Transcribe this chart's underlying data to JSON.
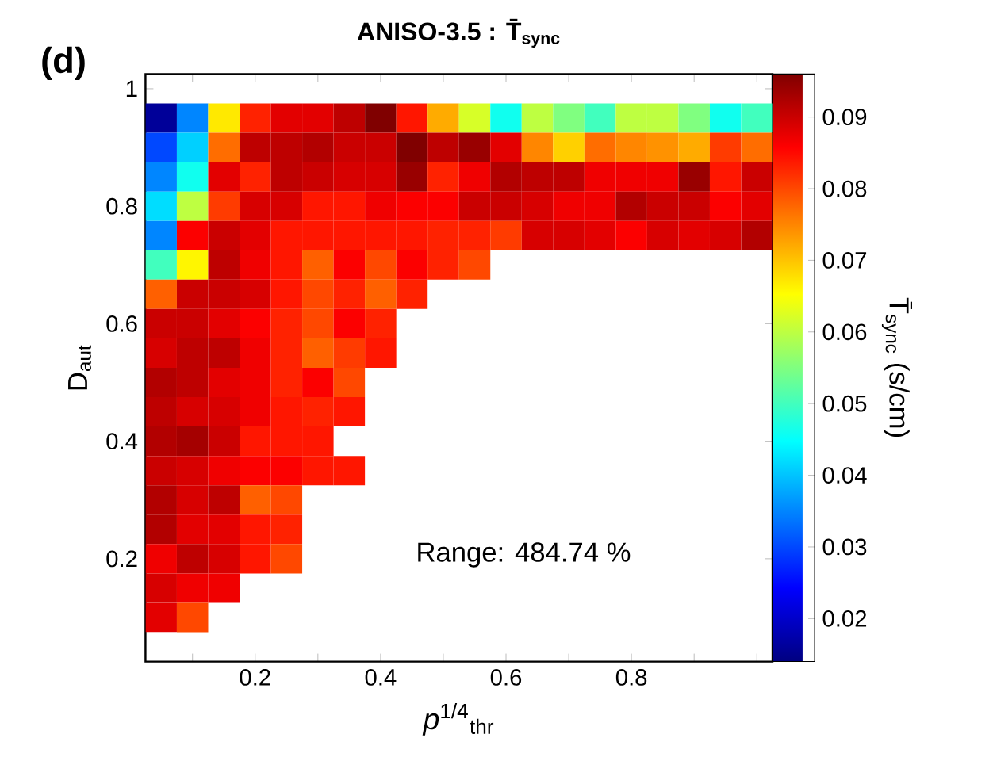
{
  "chart_data": {
    "type": "heatmap",
    "title": "ANISO-3.5 : T̄$_{sync}$",
    "xlabel": "*p*$^{1/4}$$_{thr}$",
    "ylabel": "D$_{aut}$",
    "clabel": "T̄$_{sync}$ (s/cm)",
    "annotations": [
      "(d)",
      "Range: 484.74 %"
    ],
    "x": [
      0.05,
      0.1,
      0.15,
      0.2,
      0.25,
      0.3,
      0.35,
      0.4,
      0.45,
      0.5,
      0.55,
      0.6,
      0.65,
      0.7,
      0.75,
      0.8,
      0.85,
      0.9,
      0.95,
      1.0
    ],
    "y": [
      0.95,
      0.9,
      0.85,
      0.8,
      0.75,
      0.7,
      0.65,
      0.6,
      0.55,
      0.5,
      0.45,
      0.4,
      0.35,
      0.3,
      0.25,
      0.2,
      0.15,
      0.1
    ],
    "xlim": [
      0.025,
      1.025
    ],
    "ylim": [
      0.025,
      1.025
    ],
    "xticks": [
      {
        "value": 0.1,
        "label": null
      },
      0.2,
      {
        "value": 0.3,
        "label": null
      },
      0.4,
      {
        "value": 0.5,
        "label": null
      },
      0.6,
      {
        "value": 0.7,
        "label": null
      },
      0.8,
      {
        "value": 0.9,
        "label": null
      },
      {
        "value": 1.0,
        "label": null
      }
    ],
    "yticks": [
      0.2,
      0.4,
      0.6,
      0.8,
      1
    ],
    "clim": [
      0.014,
      0.096
    ],
    "cticks": [
      0.02,
      0.03,
      0.04,
      0.05,
      0.06,
      0.07,
      0.08,
      0.09
    ],
    "cells": [
      [
        0.016,
        0.035,
        0.067,
        0.083,
        0.088,
        0.088,
        0.091,
        0.096,
        0.084,
        0.072,
        0.062,
        0.046,
        0.06,
        0.055,
        0.05,
        0.06,
        0.06,
        0.055,
        0.046,
        0.05
      ],
      [
        0.03,
        0.041,
        0.077,
        0.091,
        0.091,
        0.092,
        0.09,
        0.09,
        0.096,
        0.091,
        0.094,
        0.088,
        0.075,
        0.069,
        0.077,
        0.075,
        0.074,
        0.072,
        0.081,
        0.077
      ],
      [
        0.035,
        0.046,
        0.088,
        0.083,
        0.091,
        0.09,
        0.089,
        0.089,
        0.094,
        0.083,
        0.087,
        0.092,
        0.091,
        0.091,
        0.087,
        0.087,
        0.087,
        0.094,
        0.084,
        0.09
      ],
      [
        0.042,
        0.06,
        0.081,
        0.089,
        0.089,
        0.084,
        0.084,
        0.087,
        0.086,
        0.086,
        0.09,
        0.09,
        0.089,
        0.087,
        0.087,
        0.092,
        0.09,
        0.09,
        0.086,
        0.088
      ],
      [
        0.035,
        0.086,
        0.09,
        0.088,
        0.084,
        0.084,
        0.084,
        0.084,
        0.084,
        0.083,
        0.083,
        0.081,
        0.089,
        0.089,
        0.088,
        0.086,
        0.089,
        0.088,
        0.089,
        0.092
      ],
      [
        0.05,
        0.066,
        0.091,
        0.087,
        0.084,
        0.078,
        0.086,
        0.08,
        0.086,
        0.083,
        0.08,
        null,
        null,
        null,
        null,
        null,
        null,
        null,
        null,
        null
      ],
      [
        0.078,
        0.09,
        0.09,
        0.089,
        0.084,
        0.08,
        0.083,
        0.078,
        0.083,
        null,
        null,
        null,
        null,
        null,
        null,
        null,
        null,
        null,
        null,
        null
      ],
      [
        0.09,
        0.09,
        0.088,
        0.086,
        0.083,
        0.08,
        0.086,
        0.083,
        null,
        null,
        null,
        null,
        null,
        null,
        null,
        null,
        null,
        null,
        null,
        null
      ],
      [
        0.089,
        0.091,
        0.091,
        0.087,
        0.083,
        0.078,
        0.081,
        0.084,
        null,
        null,
        null,
        null,
        null,
        null,
        null,
        null,
        null,
        null,
        null,
        null
      ],
      [
        0.092,
        0.091,
        0.088,
        0.087,
        0.083,
        0.086,
        0.08,
        null,
        null,
        null,
        null,
        null,
        null,
        null,
        null,
        null,
        null,
        null,
        null,
        null
      ],
      [
        0.091,
        0.089,
        0.089,
        0.087,
        0.084,
        0.083,
        0.084,
        null,
        null,
        null,
        null,
        null,
        null,
        null,
        null,
        null,
        null,
        null,
        null,
        null
      ],
      [
        0.092,
        0.093,
        0.09,
        0.084,
        0.084,
        0.084,
        null,
        null,
        null,
        null,
        null,
        null,
        null,
        null,
        null,
        null,
        null,
        null,
        null,
        null
      ],
      [
        0.09,
        0.089,
        0.087,
        0.086,
        0.086,
        0.084,
        0.084,
        null,
        null,
        null,
        null,
        null,
        null,
        null,
        null,
        null,
        null,
        null,
        null,
        null
      ],
      [
        0.092,
        0.089,
        0.091,
        0.078,
        0.08,
        null,
        null,
        null,
        null,
        null,
        null,
        null,
        null,
        null,
        null,
        null,
        null,
        null,
        null,
        null
      ],
      [
        0.092,
        0.088,
        0.088,
        0.084,
        0.083,
        null,
        null,
        null,
        null,
        null,
        null,
        null,
        null,
        null,
        null,
        null,
        null,
        null,
        null,
        null
      ],
      [
        0.087,
        0.091,
        0.089,
        0.084,
        0.08,
        null,
        null,
        null,
        null,
        null,
        null,
        null,
        null,
        null,
        null,
        null,
        null,
        null,
        null,
        null
      ],
      [
        0.089,
        0.087,
        0.087,
        null,
        null,
        null,
        null,
        null,
        null,
        null,
        null,
        null,
        null,
        null,
        null,
        null,
        null,
        null,
        null,
        null
      ],
      [
        0.088,
        0.08,
        null,
        null,
        null,
        null,
        null,
        null,
        null,
        null,
        null,
        null,
        null,
        null,
        null,
        null,
        null,
        null,
        null,
        null
      ]
    ]
  }
}
